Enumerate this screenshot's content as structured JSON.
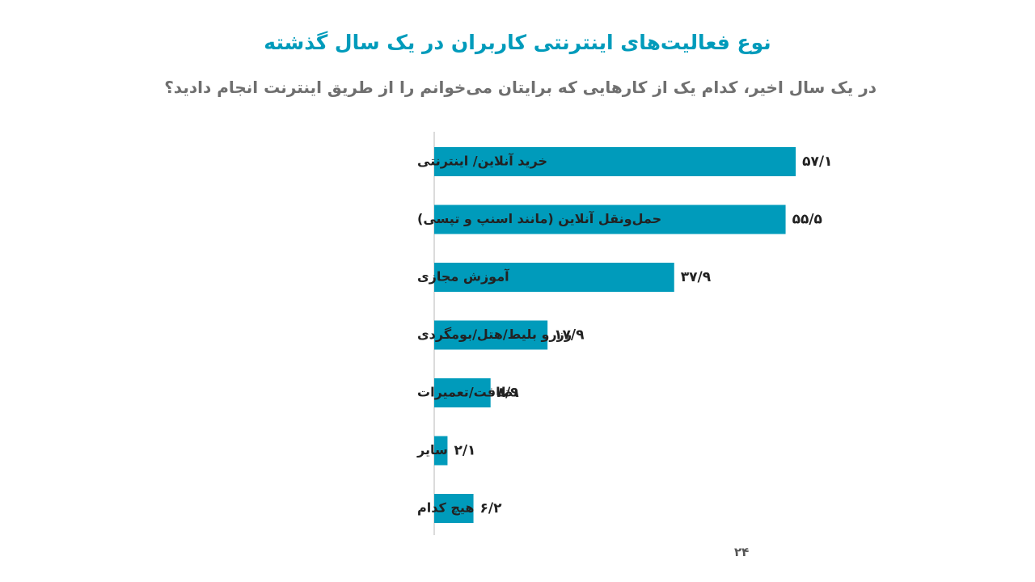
{
  "colors": {
    "accent": "#009bbb",
    "title": "#009bbb",
    "subtitle": "#6f6f6f",
    "text": "#222222",
    "axis": "#cfcfcf"
  },
  "title": "نوع فعالیت‌های اینترنتی کاربران در یک سال گذشته",
  "subtitle": "در یک سال اخیر، کدام یک از کارهایی که برایتان می‌خوانم را از طریق اینترنت انجام دادید؟",
  "page_number": "۲۴",
  "chart_data": {
    "type": "bar",
    "orientation": "horizontal",
    "title": "نوع فعالیت‌های اینترنتی کاربران در یک سال گذشته",
    "subtitle": "در یک سال اخیر، کدام یک از کارهایی که برایتان می‌خوانم را از طریق اینترنت انجام دادید؟",
    "xlabel": "",
    "ylabel": "",
    "xlim": [
      0,
      60
    ],
    "grid": false,
    "legend": "none",
    "categories": [
      "خرید آنلاین/ اینترنتی",
      "حمل‌ونقل آنلاین (مانند اسنپ و تپسی)",
      "آموزش مجازی",
      "رزرو بلیط/هتل/بومگردی",
      "نظافت/تعمیرات",
      "سایر",
      "هیچ کدام"
    ],
    "values": [
      57.1,
      55.5,
      37.9,
      17.9,
      8.9,
      2.1,
      6.2
    ],
    "value_labels": [
      "۵۷/۱",
      "۵۵/۵",
      "۳۷/۹",
      "۱۷/۹",
      "۸/۹",
      "۲/۱",
      "۶/۲"
    ]
  }
}
